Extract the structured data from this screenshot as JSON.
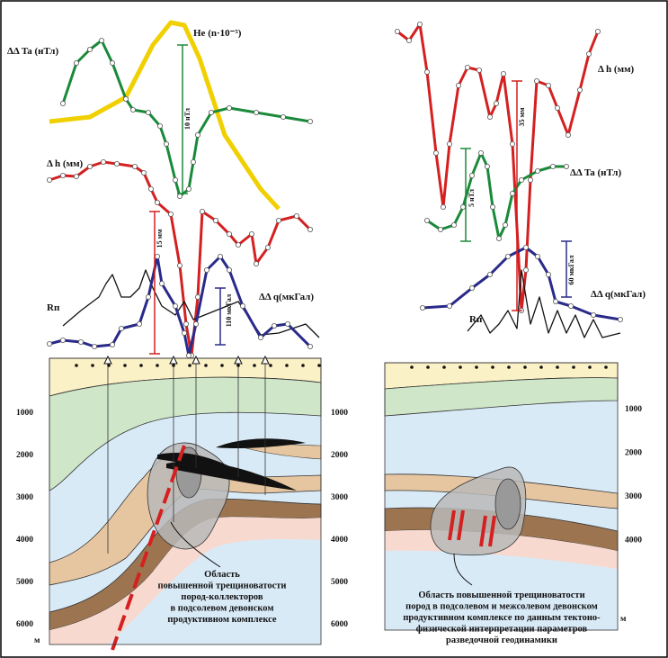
{
  "left": {
    "labels": {
      "delta_ta": "ΔΔ Ta (нТл)",
      "he": "Не (n·10⁻⁵)",
      "ta_scale": "10 нТл",
      "delta_h": "Δ h (мм)",
      "h_scale": "15 мм",
      "rp": "Rп",
      "delta_q": "ΔΔ q(мкГал)",
      "q_scale": "110 мкГал"
    },
    "depth_outer": [
      1000,
      2000,
      3000,
      4000,
      5000,
      6000
    ],
    "depth_inner": [
      1000,
      2000,
      3000,
      4000,
      5000,
      6000
    ],
    "unit": "м",
    "caption": [
      "Область",
      "повышенной трещиноватости",
      "пород-коллекторов",
      "в подсолевом девонском",
      "продуктивном комплексе"
    ]
  },
  "right": {
    "labels": {
      "delta_h": "Δ h (мм)",
      "h_scale": "35 мм",
      "ta_scale": "5 нТл",
      "delta_ta": "ΔΔ Ta (нТл)",
      "q_scale": "60 мкГал",
      "delta_q": "ΔΔ q(мкГал)",
      "rp": "Rп"
    },
    "depth": [
      1000,
      2000,
      3000,
      4000
    ],
    "unit": "м",
    "caption": [
      "Область повышенной трещиноватости",
      "пород в подсолевом и межсолевом девонском",
      "продуктивном комплексе по данным тектоно-",
      "физической интерпретации параметров",
      "разведочной геодинамики"
    ]
  }
}
